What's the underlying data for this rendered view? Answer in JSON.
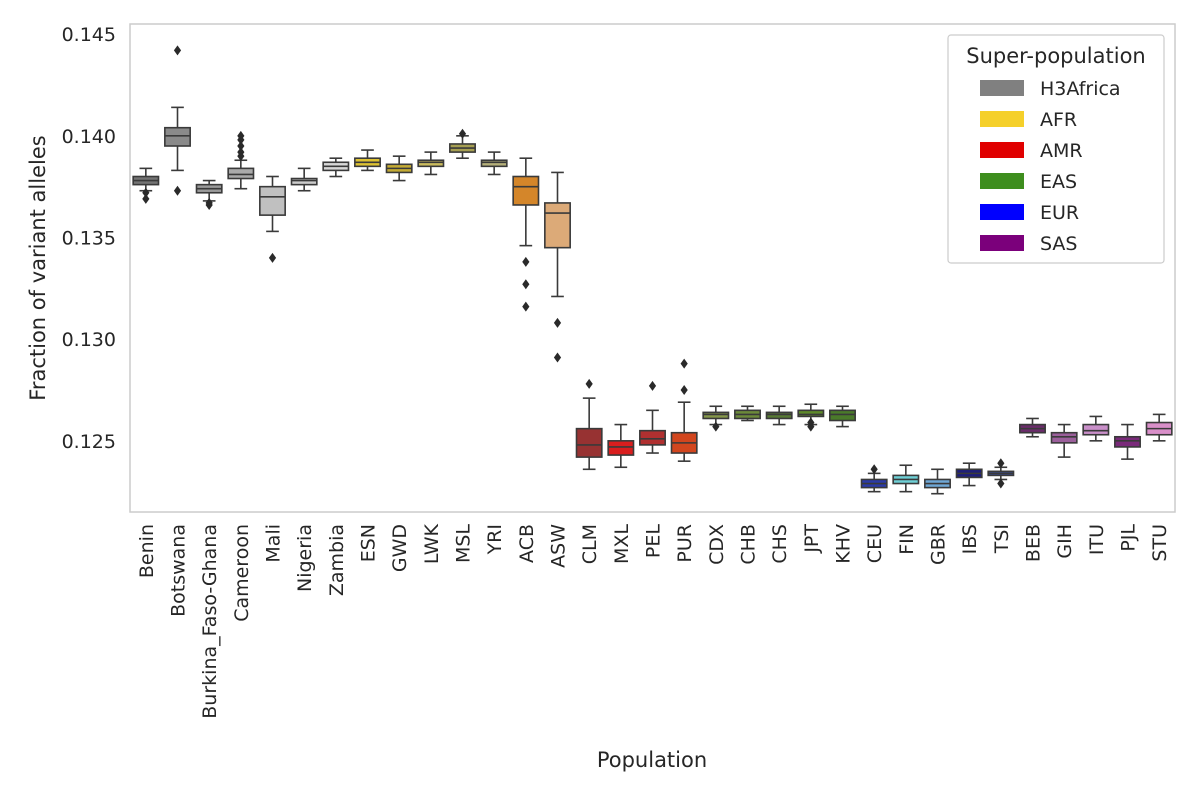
{
  "chart_data": {
    "type": "boxplot",
    "title": "",
    "xlabel": "Population",
    "ylabel": "Fraction of variant alleles",
    "ylim": [
      0.1215,
      0.1455
    ],
    "yticks": [
      0.125,
      0.13,
      0.135,
      0.14,
      0.145
    ],
    "ytick_labels": [
      "0.125",
      "0.130",
      "0.135",
      "0.140",
      "0.145"
    ],
    "grid": false,
    "legend": {
      "title": "Super-population",
      "placement": "top-right",
      "entries": [
        {
          "label": "H3Africa",
          "color": "#808080"
        },
        {
          "label": "AFR",
          "color": "#f5d02a"
        },
        {
          "label": "AMR",
          "color": "#e00000"
        },
        {
          "label": "EAS",
          "color": "#3e8e1e"
        },
        {
          "label": "EUR",
          "color": "#0000ff"
        },
        {
          "label": "SAS",
          "color": "#7b007b"
        }
      ]
    },
    "boxes": [
      {
        "category": "Benin",
        "group": "H3Africa",
        "color": "#747474",
        "whisker_low": 0.1373,
        "q1": 0.1376,
        "median": 0.1378,
        "q3": 0.138,
        "whisker_high": 0.1384,
        "outliers": [
          0.1369,
          0.1372
        ]
      },
      {
        "category": "Botswana",
        "group": "H3Africa",
        "color": "#8a8a8a",
        "whisker_low": 0.1383,
        "q1": 0.1395,
        "median": 0.14,
        "q3": 0.1404,
        "whisker_high": 0.1414,
        "outliers": [
          0.1373,
          0.1442
        ]
      },
      {
        "category": "Burkina_Faso-Ghana",
        "group": "H3Africa",
        "color": "#9a9a9a",
        "whisker_low": 0.1368,
        "q1": 0.1372,
        "median": 0.1374,
        "q3": 0.1376,
        "whisker_high": 0.1378,
        "outliers": [
          0.1366,
          0.1367
        ]
      },
      {
        "category": "Cameroon",
        "group": "H3Africa",
        "color": "#aaaaaa",
        "whisker_low": 0.1374,
        "q1": 0.1379,
        "median": 0.1381,
        "q3": 0.1384,
        "whisker_high": 0.1388,
        "outliers": [
          0.139,
          0.1392,
          0.1395,
          0.1398,
          0.14
        ]
      },
      {
        "category": "Mali",
        "group": "H3Africa",
        "color": "#c0c0c0",
        "whisker_low": 0.1353,
        "q1": 0.1361,
        "median": 0.137,
        "q3": 0.1375,
        "whisker_high": 0.138,
        "outliers": [
          0.134
        ]
      },
      {
        "category": "Nigeria",
        "group": "H3Africa",
        "color": "#cccccc",
        "whisker_low": 0.1373,
        "q1": 0.1376,
        "median": 0.1378,
        "q3": 0.1379,
        "whisker_high": 0.1384,
        "outliers": []
      },
      {
        "category": "Zambia",
        "group": "H3Africa",
        "color": "#d8d8d8",
        "whisker_low": 0.138,
        "q1": 0.1383,
        "median": 0.1385,
        "q3": 0.1387,
        "whisker_high": 0.1389,
        "outliers": []
      },
      {
        "category": "ESN",
        "group": "AFR",
        "color": "#ddc232",
        "whisker_low": 0.1383,
        "q1": 0.1385,
        "median": 0.1387,
        "q3": 0.1389,
        "whisker_high": 0.1393,
        "outliers": []
      },
      {
        "category": "GWD",
        "group": "AFR",
        "color": "#c4ab34",
        "whisker_low": 0.1378,
        "q1": 0.1382,
        "median": 0.1384,
        "q3": 0.1386,
        "whisker_high": 0.139,
        "outliers": []
      },
      {
        "category": "LWK",
        "group": "AFR",
        "color": "#cbbc5e",
        "whisker_low": 0.1381,
        "q1": 0.1385,
        "median": 0.1387,
        "q3": 0.1388,
        "whisker_high": 0.1392,
        "outliers": []
      },
      {
        "category": "MSL",
        "group": "AFR",
        "color": "#a69f52",
        "whisker_low": 0.1389,
        "q1": 0.1392,
        "median": 0.1394,
        "q3": 0.1396,
        "whisker_high": 0.14,
        "outliers": [
          0.1401
        ]
      },
      {
        "category": "YRI",
        "group": "AFR",
        "color": "#b5b07a",
        "whisker_low": 0.1381,
        "q1": 0.1385,
        "median": 0.1387,
        "q3": 0.1388,
        "whisker_high": 0.1392,
        "outliers": []
      },
      {
        "category": "ACB",
        "group": "AFR",
        "color": "#d4862a",
        "whisker_low": 0.1346,
        "q1": 0.1366,
        "median": 0.1375,
        "q3": 0.138,
        "whisker_high": 0.1389,
        "outliers": [
          0.1338,
          0.1327,
          0.1316
        ]
      },
      {
        "category": "ASW",
        "group": "AFR",
        "color": "#dcaa78",
        "whisker_low": 0.1321,
        "q1": 0.1345,
        "median": 0.1362,
        "q3": 0.1367,
        "whisker_high": 0.1382,
        "outliers": [
          0.1308,
          0.1291
        ]
      },
      {
        "category": "CLM",
        "group": "AMR",
        "color": "#973232",
        "whisker_low": 0.1236,
        "q1": 0.1242,
        "median": 0.1248,
        "q3": 0.1256,
        "whisker_high": 0.1271,
        "outliers": [
          0.1278
        ]
      },
      {
        "category": "MXL",
        "group": "AMR",
        "color": "#d91e1e",
        "whisker_low": 0.1237,
        "q1": 0.1243,
        "median": 0.1247,
        "q3": 0.125,
        "whisker_high": 0.1258,
        "outliers": []
      },
      {
        "category": "PEL",
        "group": "AMR",
        "color": "#b03030",
        "whisker_low": 0.1244,
        "q1": 0.1248,
        "median": 0.1251,
        "q3": 0.1255,
        "whisker_high": 0.1265,
        "outliers": [
          0.1277
        ]
      },
      {
        "category": "PUR",
        "group": "AMR",
        "color": "#d2461e",
        "whisker_low": 0.124,
        "q1": 0.1244,
        "median": 0.1249,
        "q3": 0.1254,
        "whisker_high": 0.1269,
        "outliers": [
          0.1275,
          0.1288
        ]
      },
      {
        "category": "CDX",
        "group": "EAS",
        "color": "#86984a",
        "whisker_low": 0.1258,
        "q1": 0.1261,
        "median": 0.1263,
        "q3": 0.1264,
        "whisker_high": 0.1267,
        "outliers": [
          0.1257
        ]
      },
      {
        "category": "CHB",
        "group": "EAS",
        "color": "#6c8a3a",
        "whisker_low": 0.126,
        "q1": 0.1261,
        "median": 0.1263,
        "q3": 0.1265,
        "whisker_high": 0.1267,
        "outliers": []
      },
      {
        "category": "CHS",
        "group": "EAS",
        "color": "#577a33",
        "whisker_low": 0.1258,
        "q1": 0.1261,
        "median": 0.1263,
        "q3": 0.1264,
        "whisker_high": 0.1267,
        "outliers": []
      },
      {
        "category": "JPT",
        "group": "EAS",
        "color": "#5e8a2a",
        "whisker_low": 0.1258,
        "q1": 0.1262,
        "median": 0.1263,
        "q3": 0.1265,
        "whisker_high": 0.1268,
        "outliers": [
          0.1257,
          0.1259
        ]
      },
      {
        "category": "KHV",
        "group": "EAS",
        "color": "#4a7a2a",
        "whisker_low": 0.1257,
        "q1": 0.126,
        "median": 0.1263,
        "q3": 0.1265,
        "whisker_high": 0.1267,
        "outliers": []
      },
      {
        "category": "CEU",
        "group": "EUR",
        "color": "#2b3aa8",
        "whisker_low": 0.1225,
        "q1": 0.1227,
        "median": 0.1229,
        "q3": 0.1231,
        "whisker_high": 0.1234,
        "outliers": [
          0.1236
        ]
      },
      {
        "category": "FIN",
        "group": "EUR",
        "color": "#6fd0d6",
        "whisker_low": 0.1225,
        "q1": 0.1229,
        "median": 0.1231,
        "q3": 0.1233,
        "whisker_high": 0.1238,
        "outliers": []
      },
      {
        "category": "GBR",
        "group": "EUR",
        "color": "#6fa8d6",
        "whisker_low": 0.1224,
        "q1": 0.1227,
        "median": 0.1229,
        "q3": 0.1231,
        "whisker_high": 0.1236,
        "outliers": []
      },
      {
        "category": "IBS",
        "group": "EUR",
        "color": "#1e1e7a",
        "whisker_low": 0.1228,
        "q1": 0.1232,
        "median": 0.1234,
        "q3": 0.1236,
        "whisker_high": 0.1239,
        "outliers": []
      },
      {
        "category": "TSI",
        "group": "EUR",
        "color": "#3a4e9a",
        "whisker_low": 0.1231,
        "q1": 0.1233,
        "median": 0.1234,
        "q3": 0.1235,
        "whisker_high": 0.1237,
        "outliers": [
          0.1229,
          0.1239
        ]
      },
      {
        "category": "BEB",
        "group": "SAS",
        "color": "#6a2c6a",
        "whisker_low": 0.1252,
        "q1": 0.1254,
        "median": 0.1256,
        "q3": 0.1258,
        "whisker_high": 0.1261,
        "outliers": []
      },
      {
        "category": "GIH",
        "group": "SAS",
        "color": "#9b5f9b",
        "whisker_low": 0.1242,
        "q1": 0.1249,
        "median": 0.1252,
        "q3": 0.1254,
        "whisker_high": 0.1258,
        "outliers": []
      },
      {
        "category": "ITU",
        "group": "SAS",
        "color": "#c98fc9",
        "whisker_low": 0.125,
        "q1": 0.1253,
        "median": 0.1255,
        "q3": 0.1258,
        "whisker_high": 0.1262,
        "outliers": []
      },
      {
        "category": "PJL",
        "group": "SAS",
        "color": "#7a2a7a",
        "whisker_low": 0.1241,
        "q1": 0.1247,
        "median": 0.125,
        "q3": 0.1252,
        "whisker_high": 0.1258,
        "outliers": []
      },
      {
        "category": "STU",
        "group": "SAS",
        "color": "#d98fc9",
        "whisker_low": 0.125,
        "q1": 0.1253,
        "median": 0.1256,
        "q3": 0.1259,
        "whisker_high": 0.1263,
        "outliers": []
      }
    ]
  }
}
